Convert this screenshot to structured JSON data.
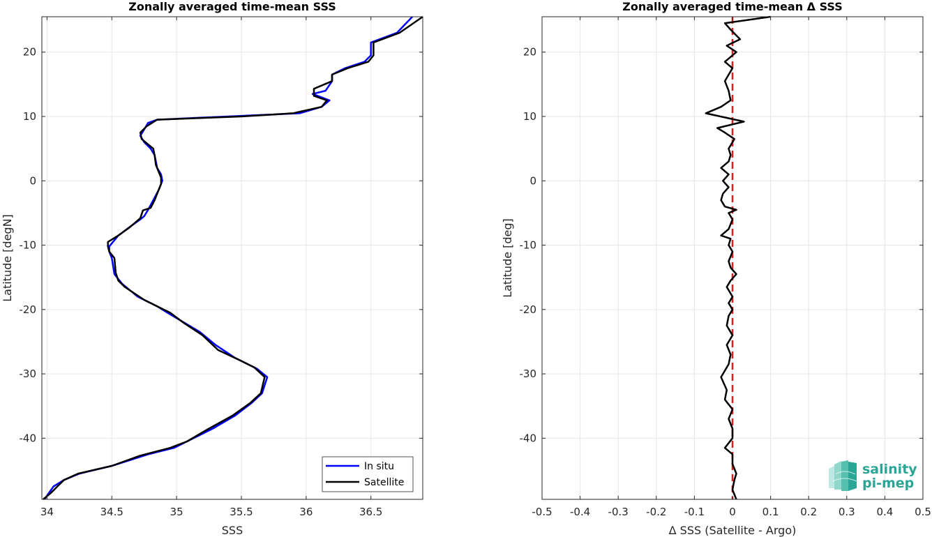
{
  "chart_data": [
    {
      "type": "line",
      "title": "Zonally averaged time-mean SSS",
      "xlabel": "SSS",
      "ylabel": "Latitude [degN]",
      "xlim": [
        33.96,
        36.9
      ],
      "ylim": [
        -49.5,
        25.5
      ],
      "xticks": [
        34,
        34.5,
        35,
        35.5,
        36,
        36.5
      ],
      "yticks": [
        -40,
        -30,
        -20,
        -10,
        0,
        10,
        20
      ],
      "grid": true,
      "legend": "bottom-right",
      "colors": {
        "In situ": "#0000ff",
        "Satellite": "#000000"
      },
      "series": [
        {
          "name": "In situ",
          "points": [
            [
              33.98,
              -49.5
            ],
            [
              34.05,
              -47.5
            ],
            [
              34.13,
              -46.5
            ],
            [
              34.25,
              -45.5
            ],
            [
              34.5,
              -44.3
            ],
            [
              34.78,
              -42.5
            ],
            [
              34.98,
              -41.5
            ],
            [
              35.08,
              -40.5
            ],
            [
              35.28,
              -38.5
            ],
            [
              35.45,
              -36.5
            ],
            [
              35.58,
              -34.5
            ],
            [
              35.66,
              -33
            ],
            [
              35.7,
              -30.5
            ],
            [
              35.62,
              -29.2
            ],
            [
              35.45,
              -27.5
            ],
            [
              35.3,
              -25.5
            ],
            [
              35.18,
              -23.5
            ],
            [
              35.03,
              -21.7
            ],
            [
              34.93,
              -20.5
            ],
            [
              34.85,
              -19.5
            ],
            [
              34.7,
              -18
            ],
            [
              34.58,
              -16
            ],
            [
              34.52,
              -14.5
            ],
            [
              34.5,
              -12
            ],
            [
              34.48,
              -11
            ],
            [
              34.48,
              -10.2
            ],
            [
              34.55,
              -8.5
            ],
            [
              34.65,
              -7
            ],
            [
              34.72,
              -6
            ],
            [
              34.75,
              -5.5
            ],
            [
              34.78,
              -4.5
            ],
            [
              34.82,
              -3
            ],
            [
              34.86,
              -1.5
            ],
            [
              34.89,
              0
            ],
            [
              34.88,
              1
            ],
            [
              34.85,
              2
            ],
            [
              34.83,
              4
            ],
            [
              34.8,
              5
            ],
            [
              34.75,
              6
            ],
            [
              34.72,
              7
            ],
            [
              34.75,
              8
            ],
            [
              34.78,
              9
            ],
            [
              34.85,
              9.5
            ],
            [
              35.4,
              10
            ],
            [
              35.95,
              10.5
            ],
            [
              36.12,
              11.5
            ],
            [
              36.18,
              12.5
            ],
            [
              36.05,
              13.5
            ],
            [
              36.15,
              14
            ],
            [
              36.2,
              15.5
            ],
            [
              36.2,
              16.5
            ],
            [
              36.3,
              17.5
            ],
            [
              36.45,
              18.5
            ],
            [
              36.5,
              19.5
            ],
            [
              36.5,
              21.5
            ],
            [
              36.7,
              23
            ],
            [
              36.82,
              25.5
            ]
          ]
        },
        {
          "name": "Satellite",
          "points": [
            [
              33.97,
              -49.5
            ],
            [
              34.03,
              -48.5
            ],
            [
              34.08,
              -47.5
            ],
            [
              34.13,
              -46.5
            ],
            [
              34.24,
              -45.5
            ],
            [
              34.5,
              -44.3
            ],
            [
              34.72,
              -42.7
            ],
            [
              34.95,
              -41.5
            ],
            [
              35.08,
              -40.5
            ],
            [
              35.25,
              -38.5
            ],
            [
              35.43,
              -36.5
            ],
            [
              35.57,
              -34.5
            ],
            [
              35.65,
              -33
            ],
            [
              35.68,
              -30.5
            ],
            [
              35.6,
              -29
            ],
            [
              35.5,
              -28
            ],
            [
              35.32,
              -26.3
            ],
            [
              35.2,
              -24
            ],
            [
              35.05,
              -22
            ],
            [
              34.95,
              -20.5
            ],
            [
              34.86,
              -19.6
            ],
            [
              34.75,
              -18.5
            ],
            [
              34.6,
              -16.5
            ],
            [
              34.55,
              -15.5
            ],
            [
              34.53,
              -14.3
            ],
            [
              34.52,
              -12
            ],
            [
              34.48,
              -11
            ],
            [
              34.47,
              -10.2
            ],
            [
              34.47,
              -9.5
            ],
            [
              34.55,
              -8.5
            ],
            [
              34.64,
              -7.2
            ],
            [
              34.72,
              -5.8
            ],
            [
              34.74,
              -4.6
            ],
            [
              34.8,
              -4.2
            ],
            [
              34.83,
              -3
            ],
            [
              34.85,
              -2
            ],
            [
              34.88,
              -0.5
            ],
            [
              34.88,
              0.5
            ],
            [
              34.86,
              1.5
            ],
            [
              34.84,
              2.5
            ],
            [
              34.83,
              4
            ],
            [
              34.82,
              5
            ],
            [
              34.76,
              6
            ],
            [
              34.73,
              6.5
            ],
            [
              34.72,
              7.5
            ],
            [
              34.77,
              8.5
            ],
            [
              34.85,
              9.5
            ],
            [
              35.5,
              10
            ],
            [
              35.9,
              10.5
            ],
            [
              36.12,
              11.5
            ],
            [
              36.16,
              12.5
            ],
            [
              36.06,
              13.2
            ],
            [
              36.06,
              14.3
            ],
            [
              36.2,
              15.5
            ],
            [
              36.2,
              16.5
            ],
            [
              36.32,
              17.5
            ],
            [
              36.48,
              18.5
            ],
            [
              36.52,
              19.5
            ],
            [
              36.52,
              21.5
            ],
            [
              36.72,
              23
            ],
            [
              36.9,
              25.5
            ]
          ]
        }
      ]
    },
    {
      "type": "line",
      "title": "Zonally averaged time-mean Δ SSS",
      "xlabel": "Δ SSS (Satellite - Argo)",
      "ylabel": "Latitude [deg]",
      "xlim": [
        -0.5,
        0.5
      ],
      "ylim": [
        -49.5,
        25.5
      ],
      "xticks": [
        -0.5,
        -0.4,
        -0.3,
        -0.2,
        -0.1,
        0,
        0.1,
        0.2,
        0.3,
        0.4,
        0.5
      ],
      "yticks": [
        -40,
        -30,
        -20,
        -10,
        0,
        10,
        20
      ],
      "grid": true,
      "colors": {
        "delta": "#000000",
        "zero_line": "#e41a1c"
      },
      "reference_line": {
        "x": 0,
        "style": "dashed"
      },
      "series": [
        {
          "points": [
            [
              0.01,
              -49.5
            ],
            [
              0.0,
              -48
            ],
            [
              0.005,
              -46.5
            ],
            [
              0.01,
              -45.5
            ],
            [
              0.0,
              -44
            ],
            [
              0.0,
              -42.5
            ],
            [
              -0.02,
              -41.5
            ],
            [
              0.0,
              -40
            ],
            [
              0.0,
              -38.5
            ],
            [
              -0.01,
              -37
            ],
            [
              0.0,
              -35.5
            ],
            [
              -0.02,
              -34
            ],
            [
              -0.015,
              -32.5
            ],
            [
              -0.03,
              -30.5
            ],
            [
              -0.01,
              -28.5
            ],
            [
              -0.005,
              -27
            ],
            [
              -0.015,
              -25.5
            ],
            [
              0.0,
              -24
            ],
            [
              -0.015,
              -22.5
            ],
            [
              -0.01,
              -21
            ],
            [
              0.0,
              -20
            ],
            [
              -0.01,
              -19
            ],
            [
              0.0,
              -18
            ],
            [
              -0.015,
              -16.5
            ],
            [
              -0.005,
              -15.5
            ],
            [
              0.01,
              -14.5
            ],
            [
              -0.005,
              -13.5
            ],
            [
              -0.01,
              -12.5
            ],
            [
              0.0,
              -11
            ],
            [
              -0.01,
              -10
            ],
            [
              -0.005,
              -9
            ],
            [
              -0.03,
              -8.5
            ],
            [
              -0.01,
              -7.5
            ],
            [
              0.0,
              -6
            ],
            [
              -0.01,
              -5
            ],
            [
              0.01,
              -4.5
            ],
            [
              -0.02,
              -4
            ],
            [
              -0.03,
              -3
            ],
            [
              -0.025,
              -2
            ],
            [
              -0.01,
              -1
            ],
            [
              -0.025,
              0
            ],
            [
              -0.01,
              1
            ],
            [
              -0.03,
              2
            ],
            [
              -0.01,
              3
            ],
            [
              -0.005,
              4
            ],
            [
              -0.01,
              5
            ],
            [
              0.005,
              6.5
            ],
            [
              -0.02,
              7.5
            ],
            [
              -0.04,
              8.2
            ],
            [
              0.03,
              9.2
            ],
            [
              -0.07,
              10.5
            ],
            [
              -0.03,
              11.5
            ],
            [
              -0.005,
              12.5
            ],
            [
              -0.01,
              14
            ],
            [
              -0.02,
              15.5
            ],
            [
              -0.01,
              16.5
            ],
            [
              0.0,
              17.5
            ],
            [
              -0.02,
              18.5
            ],
            [
              0.01,
              20
            ],
            [
              -0.015,
              21
            ],
            [
              0.02,
              22
            ],
            [
              -0.005,
              23.5
            ],
            [
              -0.02,
              24.5
            ],
            [
              0.1,
              25.5
            ]
          ]
        }
      ]
    }
  ],
  "legend": {
    "items": [
      {
        "label": "In situ",
        "color": "#0000ff"
      },
      {
        "label": "Satellite",
        "color": "#000000"
      }
    ]
  },
  "logo": {
    "line1": "salinity",
    "line2": "pi-mep"
  }
}
